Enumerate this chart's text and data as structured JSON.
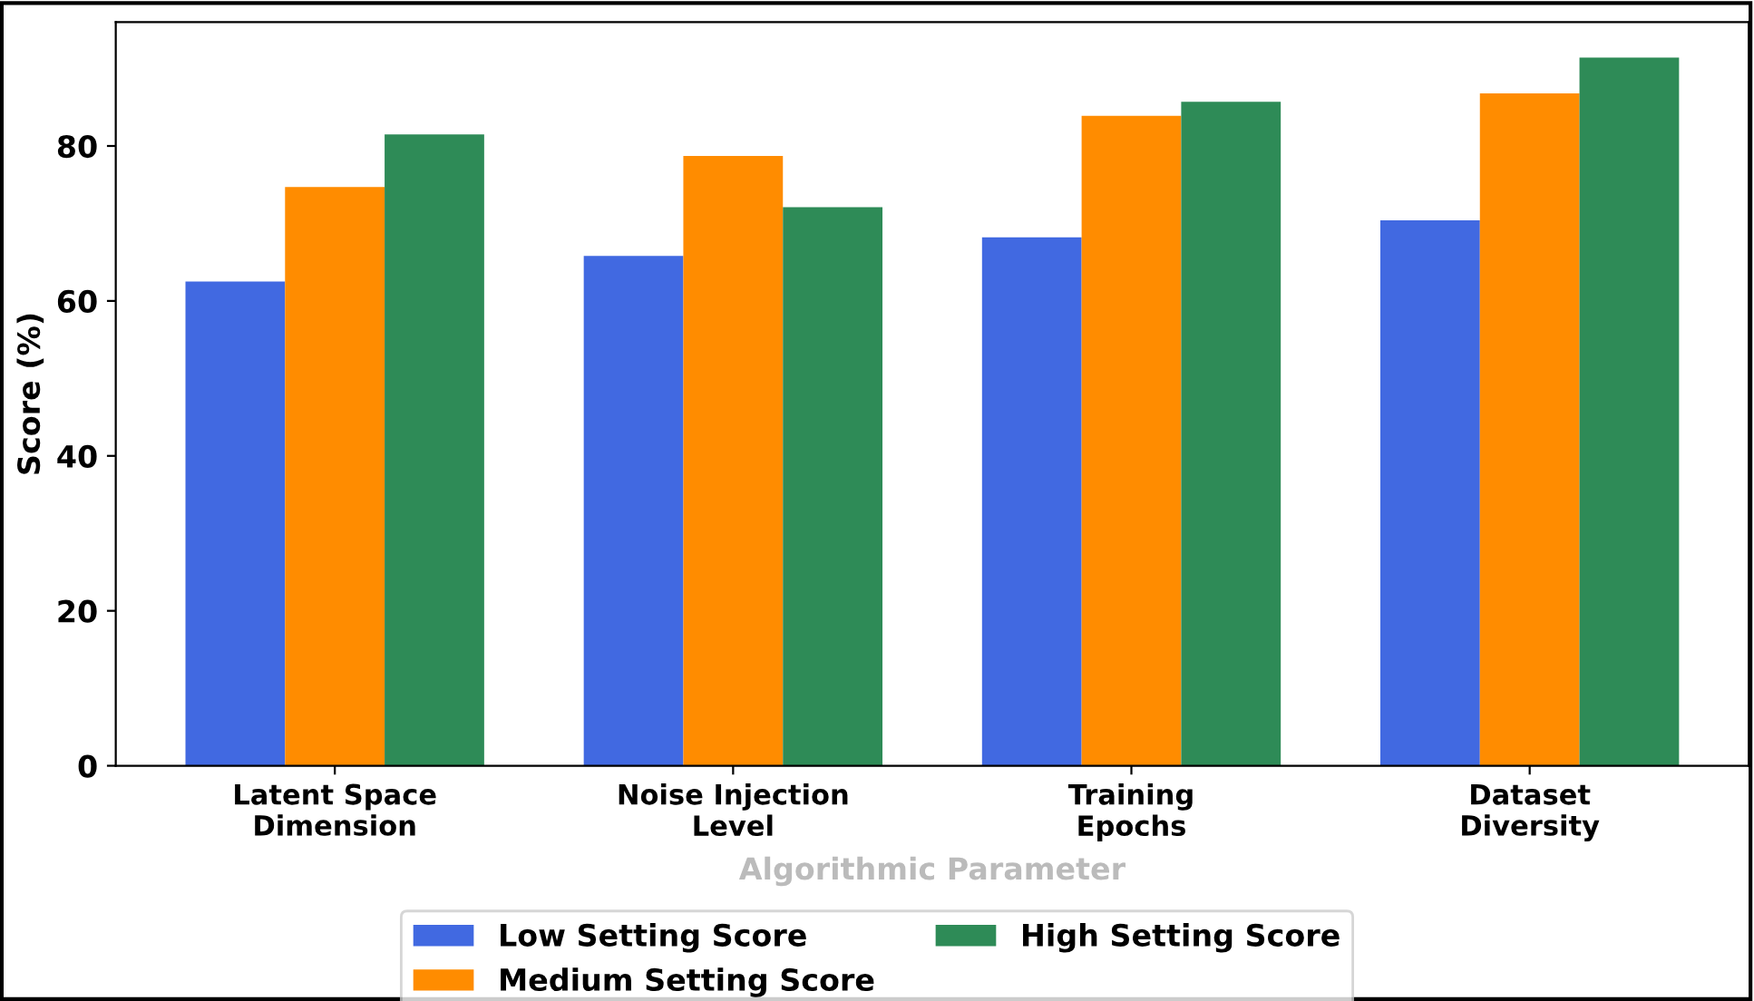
{
  "chart_data": {
    "type": "bar",
    "xlabel": "Algorithmic Parameter",
    "ylabel": "Score (%)",
    "categories": [
      "Latent Space\nDimension",
      "Noise Injection\nLevel",
      "Training\nEpochs",
      "Dataset\nDiversity"
    ],
    "series": [
      {
        "name": "Low Setting Score",
        "color": "#4169e1",
        "values": [
          62.5,
          65.8,
          68.2,
          70.4
        ]
      },
      {
        "name": "Medium Setting Score",
        "color": "#ff8c00",
        "values": [
          74.7,
          78.7,
          83.9,
          86.8
        ]
      },
      {
        "name": "High Setting Score",
        "color": "#2e8b57",
        "values": [
          81.5,
          72.1,
          85.7,
          91.4
        ]
      }
    ],
    "ylim": [
      0,
      96
    ],
    "yticks": [
      0,
      20,
      40,
      60,
      80
    ],
    "grid": false,
    "legend": "bottom"
  }
}
